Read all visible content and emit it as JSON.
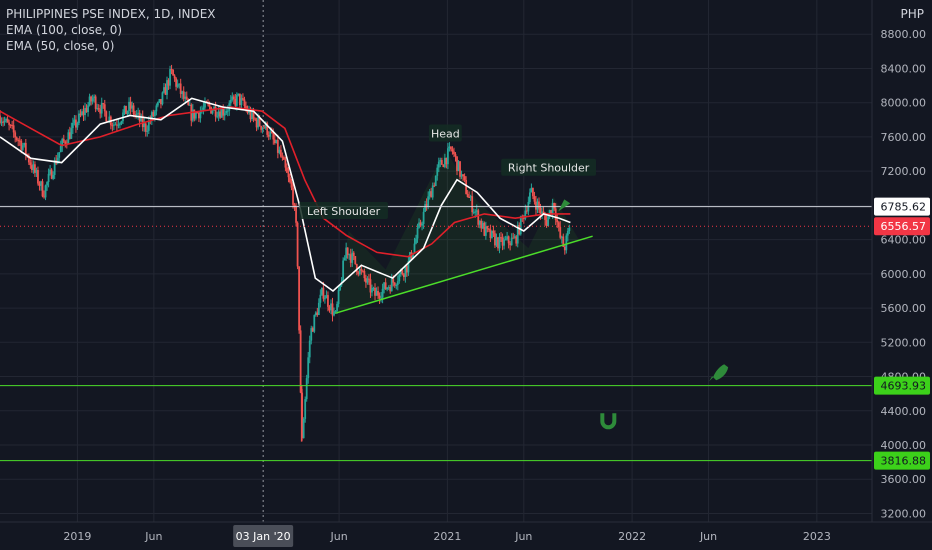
{
  "legend": {
    "title": "PHILIPPINES PSE INDEX, 1D, INDEX",
    "ema100": "EMA (100, close, 0)",
    "ema50": "EMA (50, close, 0)"
  },
  "currency": "PHP",
  "crosshair_date_label": "03 Jan '20",
  "colors": {
    "background": "#131722",
    "grid": "#232733",
    "up": "#26a69a",
    "down": "#ef5350",
    "ema_white": "#ffffff",
    "ema_red": "#e0202a",
    "trendline": "#4cdd2a",
    "hline_green": "#4cdd2a",
    "hline_white": "#d1d4dc",
    "last_price": "#f23645"
  },
  "chart_data": {
    "type": "candlestick",
    "title": "PHILIPPINES PSE INDEX, 1D, INDEX",
    "y_ticks": [
      3200,
      3600,
      4000,
      4400,
      4800,
      5200,
      5600,
      6000,
      6400,
      6800,
      7200,
      7600,
      8000,
      8400,
      8800
    ],
    "y_tick_labels": [
      "3200.00",
      "3600.00",
      "4000.00",
      "4400.00",
      "4800.00",
      "5200.00",
      "5600.00",
      "6000.00",
      "6400.00",
      "6800.00",
      "7200.00",
      "7600.00",
      "8000.00",
      "8400.00",
      "8800.00"
    ],
    "x_ticks": [
      "2019-01-01",
      "2019-06-01",
      "2020-06-01",
      "2021-01-01",
      "2021-06-01",
      "2022-01-01",
      "2022-06-01",
      "2023-01-01"
    ],
    "x_tick_labels": [
      "2019",
      "Jun",
      "Jun",
      "2021",
      "Jun",
      "2022",
      "Jun",
      "2023"
    ],
    "ylim": [
      3100,
      9200
    ],
    "xlim": [
      "2018-08-01",
      "2023-04-20"
    ],
    "price_path": [
      [
        "2018-08-01",
        7850
      ],
      [
        "2018-09-15",
        7500
      ],
      [
        "2018-10-26",
        6950
      ],
      [
        "2018-12-01",
        7500
      ],
      [
        "2019-01-31",
        8050
      ],
      [
        "2019-03-15",
        7750
      ],
      [
        "2019-04-15",
        7950
      ],
      [
        "2019-05-15",
        7700
      ],
      [
        "2019-06-15",
        8000
      ],
      [
        "2019-07-05",
        8350
      ],
      [
        "2019-08-15",
        7850
      ],
      [
        "2019-09-15",
        7950
      ],
      [
        "2019-10-15",
        7900
      ],
      [
        "2019-11-15",
        8050
      ],
      [
        "2019-12-15",
        7800
      ],
      [
        "2020-01-10",
        7700
      ],
      [
        "2020-02-05",
        7400
      ],
      [
        "2020-03-01",
        6950
      ],
      [
        "2020-03-10",
        6400
      ],
      [
        "2020-03-19",
        4039
      ],
      [
        "2020-04-05",
        5300
      ],
      [
        "2020-04-30",
        5800
      ],
      [
        "2020-05-25",
        5500
      ],
      [
        "2020-06-15",
        6300
      ],
      [
        "2020-07-15",
        6000
      ],
      [
        "2020-08-10",
        5750
      ],
      [
        "2020-09-15",
        5900
      ],
      [
        "2020-10-15",
        6100
      ],
      [
        "2020-11-15",
        6700
      ],
      [
        "2020-12-15",
        7250
      ],
      [
        "2021-01-10",
        7450
      ],
      [
        "2021-02-15",
        6850
      ],
      [
        "2021-03-15",
        6500
      ],
      [
        "2021-04-15",
        6350
      ],
      [
        "2021-05-15",
        6400
      ],
      [
        "2021-06-15",
        6950
      ],
      [
        "2021-07-15",
        6600
      ],
      [
        "2021-07-30",
        6850
      ],
      [
        "2021-08-10",
        6450
      ],
      [
        "2021-08-20",
        6300
      ],
      [
        "2021-09-01",
        6556.57
      ]
    ],
    "ema50_path": [
      [
        "2018-08-01",
        7600
      ],
      [
        "2018-10-01",
        7350
      ],
      [
        "2018-12-01",
        7300
      ],
      [
        "2019-02-15",
        7750
      ],
      [
        "2019-04-15",
        7850
      ],
      [
        "2019-06-15",
        7800
      ],
      [
        "2019-08-15",
        8050
      ],
      [
        "2019-10-15",
        7950
      ],
      [
        "2019-12-15",
        7900
      ],
      [
        "2020-02-10",
        7550
      ],
      [
        "2020-03-15",
        6800
      ],
      [
        "2020-04-15",
        5950
      ],
      [
        "2020-05-20",
        5800
      ],
      [
        "2020-07-15",
        6100
      ],
      [
        "2020-09-15",
        5950
      ],
      [
        "2020-11-15",
        6300
      ],
      [
        "2020-12-20",
        6800
      ],
      [
        "2021-01-20",
        7100
      ],
      [
        "2021-03-01",
        6950
      ],
      [
        "2021-04-15",
        6650
      ],
      [
        "2021-06-01",
        6500
      ],
      [
        "2021-07-10",
        6700
      ],
      [
        "2021-08-10",
        6650
      ],
      [
        "2021-09-01",
        6600
      ]
    ],
    "ema100_path": [
      [
        "2018-08-01",
        7900
      ],
      [
        "2018-10-01",
        7700
      ],
      [
        "2018-12-01",
        7500
      ],
      [
        "2019-02-15",
        7600
      ],
      [
        "2019-05-01",
        7750
      ],
      [
        "2019-07-01",
        7850
      ],
      [
        "2019-09-01",
        7900
      ],
      [
        "2019-11-01",
        7950
      ],
      [
        "2020-01-01",
        7900
      ],
      [
        "2020-02-15",
        7700
      ],
      [
        "2020-03-25",
        7100
      ],
      [
        "2020-05-01",
        6650
      ],
      [
        "2020-06-15",
        6450
      ],
      [
        "2020-08-15",
        6250
      ],
      [
        "2020-10-15",
        6200
      ],
      [
        "2020-12-01",
        6350
      ],
      [
        "2021-01-15",
        6600
      ],
      [
        "2021-03-15",
        6700
      ],
      [
        "2021-05-15",
        6650
      ],
      [
        "2021-07-15",
        6700
      ],
      [
        "2021-09-01",
        6700
      ]
    ],
    "levels": [
      {
        "value": 6785.62,
        "label": "6785.62",
        "style": "white"
      },
      {
        "value": 4693.93,
        "label": "4693.93",
        "style": "green"
      },
      {
        "value": 3816.88,
        "label": "3816.88",
        "style": "green"
      }
    ],
    "last_price": {
      "value": 6556.57,
      "label": "6556.57"
    },
    "trendline": [
      [
        "2020-05-25",
        5540
      ],
      [
        "2021-10-15",
        6440
      ]
    ],
    "annotations": [
      {
        "text": "Left Shoulder",
        "date": "2020-06-10",
        "value": 6735
      },
      {
        "text": "Head",
        "date": "2020-12-28",
        "value": 7640
      },
      {
        "text": "Right Shoulder",
        "date": "2021-07-20",
        "value": 7240
      }
    ],
    "icons": [
      {
        "name": "rocket-icon",
        "date": "2022-06-20",
        "value": 4850
      },
      {
        "name": "magnet-icon",
        "date": "2021-11-15",
        "value": 4300
      },
      {
        "name": "pennant-icon",
        "date": "2021-08-20",
        "value": 6800
      }
    ]
  }
}
